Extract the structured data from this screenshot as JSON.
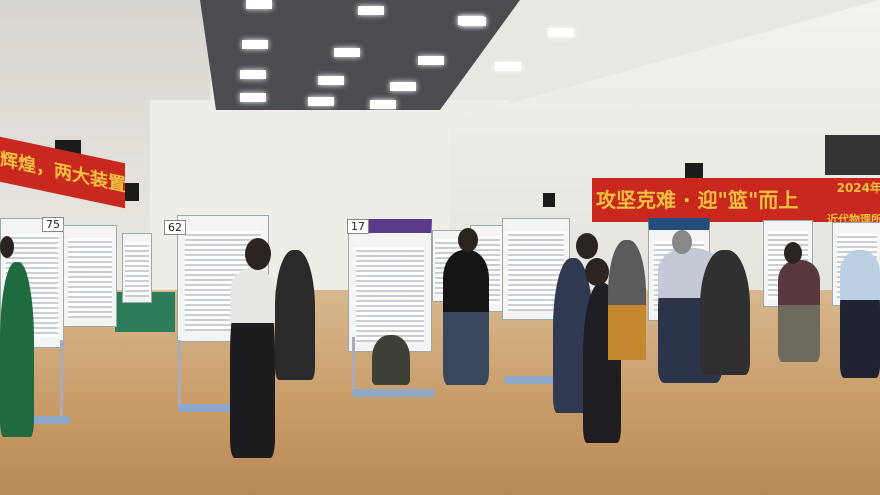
{
  "banners": {
    "left": "辉煌，两大装置实现新突破",
    "right_main": "攻坚克难 · 迎\"篮\"而上",
    "right_year": "2024年",
    "right_org": "近代物理所"
  },
  "poster_numbers": [
    "75",
    "62",
    "17"
  ],
  "colors": {
    "banner": "#c8281e",
    "banner_text": "#f0c040",
    "floor": "#c79a66"
  }
}
